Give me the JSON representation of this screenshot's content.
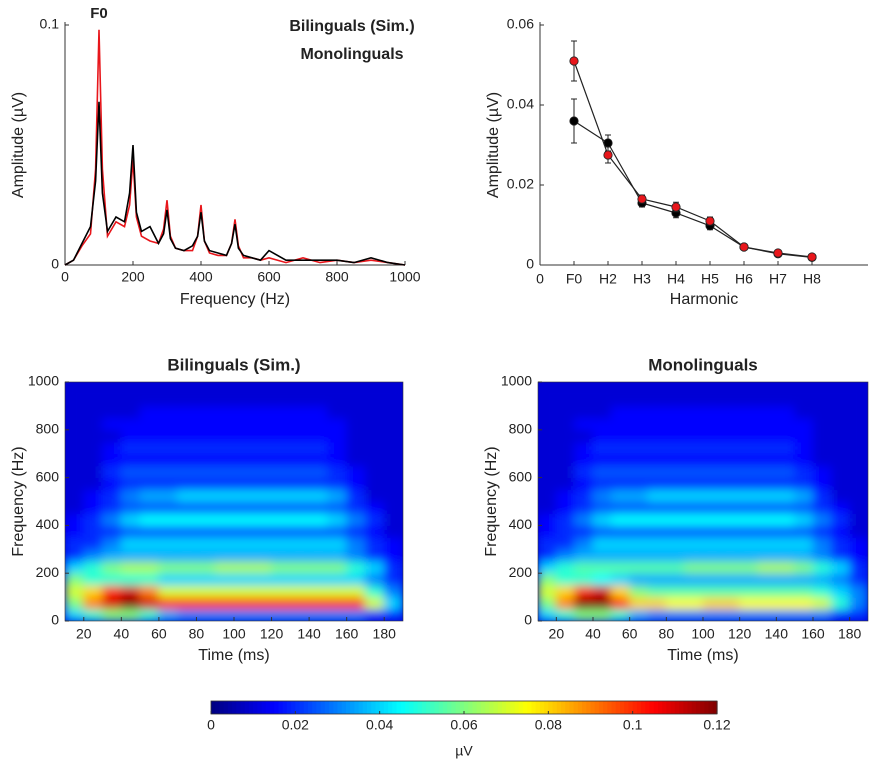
{
  "chart_data": [
    {
      "type": "line",
      "annotation": "F0",
      "xlabel": "Frequency (Hz)",
      "ylabel": "Amplitude (µV)",
      "xlim": [
        0,
        1000
      ],
      "ylim": [
        0,
        0.1
      ],
      "xticks": [
        0,
        200,
        400,
        600,
        800,
        1000
      ],
      "yticks": [
        0,
        0.1
      ],
      "x": [
        0,
        25,
        50,
        75,
        90,
        100,
        110,
        125,
        150,
        175,
        190,
        200,
        210,
        225,
        250,
        275,
        290,
        300,
        310,
        325,
        350,
        375,
        390,
        400,
        410,
        425,
        450,
        475,
        490,
        500,
        510,
        525,
        550,
        575,
        600,
        650,
        700,
        750,
        800,
        850,
        900,
        950,
        1000
      ],
      "series": [
        {
          "name": "Bilinguals (Sim.)",
          "color": "#e8161b",
          "values": [
            0,
            0.002,
            0.008,
            0.013,
            0.04,
            0.098,
            0.04,
            0.012,
            0.018,
            0.016,
            0.025,
            0.044,
            0.02,
            0.012,
            0.01,
            0.009,
            0.015,
            0.027,
            0.012,
            0.007,
            0.006,
            0.006,
            0.012,
            0.025,
            0.01,
            0.005,
            0.004,
            0.004,
            0.009,
            0.019,
            0.008,
            0.003,
            0.003,
            0.002,
            0.003,
            0.001,
            0.003,
            0.001,
            0.002,
            0.001,
            0.002,
            0.001,
            0
          ]
        },
        {
          "name": "Monolinguals",
          "color": "#000000",
          "values": [
            0,
            0.002,
            0.009,
            0.016,
            0.035,
            0.068,
            0.03,
            0.014,
            0.02,
            0.018,
            0.03,
            0.05,
            0.022,
            0.014,
            0.016,
            0.009,
            0.013,
            0.023,
            0.011,
            0.007,
            0.006,
            0.008,
            0.012,
            0.022,
            0.01,
            0.006,
            0.005,
            0.004,
            0.009,
            0.017,
            0.007,
            0.004,
            0.003,
            0.002,
            0.006,
            0.002,
            0.002,
            0.002,
            0.002,
            0.001,
            0.003,
            0.001,
            0
          ]
        }
      ]
    },
    {
      "type": "errorline",
      "xlabel": "Harmonic",
      "ylabel": "Amplitude (µV)",
      "categories": [
        "0",
        "F0",
        "H2",
        "H3",
        "H4",
        "H5",
        "H6",
        "H7",
        "H8"
      ],
      "ylim": [
        0,
        0.06
      ],
      "yticks": [
        0,
        0.02,
        0.04,
        0.06
      ],
      "series": [
        {
          "name": "Monolinguals",
          "color": "#000000",
          "values": [
            null,
            0.036,
            0.0305,
            0.0155,
            0.013,
            0.0098,
            0.0045,
            0.0028,
            0.0019
          ],
          "errors": [
            null,
            0.0055,
            0.002,
            0.001,
            0.0012,
            0.001,
            0.0005,
            0.0004,
            0.0003
          ]
        },
        {
          "name": "Bilinguals (Sim.)",
          "color": "#e8161b",
          "values": [
            null,
            0.051,
            0.0275,
            0.0165,
            0.0145,
            0.011,
            0.0045,
            0.003,
            0.002
          ],
          "errors": [
            null,
            0.005,
            0.002,
            0.001,
            0.0012,
            0.001,
            0.0005,
            0.0004,
            0.0003
          ]
        }
      ]
    },
    {
      "type": "heatmap",
      "title": "Bilinguals (Sim.)",
      "title_color": "#e8161b",
      "xlabel": "Time (ms)",
      "ylabel": "Frequency (Hz)",
      "xlim": [
        10,
        190
      ],
      "ylim": [
        0,
        1000
      ],
      "xticks": [
        20,
        40,
        60,
        80,
        100,
        120,
        140,
        160,
        180
      ],
      "yticks": [
        0,
        200,
        400,
        600,
        800,
        1000
      ],
      "x": [
        15,
        25,
        35,
        45,
        55,
        65,
        75,
        85,
        95,
        105,
        115,
        125,
        135,
        145,
        155,
        165,
        175,
        185
      ],
      "y": [
        25,
        75,
        125,
        175,
        225,
        275,
        325,
        375,
        425,
        475,
        525,
        575,
        625,
        675,
        725,
        775,
        825,
        875,
        925,
        975
      ],
      "z": [
        [
          0.04,
          0.05,
          0.06,
          0.06,
          0.05,
          0.035,
          0.03,
          0.03,
          0.03,
          0.03,
          0.03,
          0.03,
          0.03,
          0.03,
          0.03,
          0.03,
          0.02,
          0.02
        ],
        [
          0.06,
          0.09,
          0.11,
          0.12,
          0.11,
          0.1,
          0.1,
          0.1,
          0.1,
          0.1,
          0.1,
          0.1,
          0.1,
          0.1,
          0.1,
          0.1,
          0.07,
          0.04
        ],
        [
          0.07,
          0.08,
          0.1,
          0.11,
          0.09,
          0.07,
          0.07,
          0.07,
          0.07,
          0.07,
          0.07,
          0.07,
          0.07,
          0.07,
          0.07,
          0.07,
          0.05,
          0.03
        ],
        [
          0.06,
          0.05,
          0.05,
          0.05,
          0.05,
          0.04,
          0.04,
          0.04,
          0.04,
          0.04,
          0.04,
          0.04,
          0.04,
          0.04,
          0.04,
          0.04,
          0.03,
          0.02
        ],
        [
          0.04,
          0.05,
          0.06,
          0.065,
          0.065,
          0.06,
          0.06,
          0.06,
          0.065,
          0.065,
          0.065,
          0.06,
          0.06,
          0.06,
          0.06,
          0.05,
          0.04,
          0.02
        ],
        [
          0.02,
          0.03,
          0.035,
          0.035,
          0.035,
          0.035,
          0.035,
          0.035,
          0.035,
          0.035,
          0.035,
          0.035,
          0.035,
          0.035,
          0.035,
          0.03,
          0.02,
          0.015
        ],
        [
          0.02,
          0.02,
          0.03,
          0.04,
          0.04,
          0.04,
          0.04,
          0.04,
          0.04,
          0.04,
          0.04,
          0.04,
          0.04,
          0.04,
          0.04,
          0.03,
          0.02,
          0.015
        ],
        [
          0.015,
          0.02,
          0.02,
          0.025,
          0.025,
          0.025,
          0.025,
          0.025,
          0.025,
          0.025,
          0.025,
          0.025,
          0.025,
          0.025,
          0.025,
          0.02,
          0.015,
          0.01
        ],
        [
          0.015,
          0.02,
          0.03,
          0.04,
          0.045,
          0.045,
          0.045,
          0.045,
          0.045,
          0.045,
          0.045,
          0.045,
          0.045,
          0.045,
          0.04,
          0.03,
          0.02,
          0.01
        ],
        [
          0.01,
          0.015,
          0.02,
          0.025,
          0.025,
          0.025,
          0.025,
          0.025,
          0.025,
          0.025,
          0.025,
          0.025,
          0.025,
          0.025,
          0.025,
          0.02,
          0.015,
          0.01
        ],
        [
          0.01,
          0.015,
          0.02,
          0.03,
          0.035,
          0.035,
          0.04,
          0.04,
          0.04,
          0.04,
          0.04,
          0.04,
          0.04,
          0.04,
          0.035,
          0.02,
          0.01,
          0.01
        ],
        [
          0.01,
          0.01,
          0.015,
          0.02,
          0.02,
          0.02,
          0.02,
          0.02,
          0.02,
          0.02,
          0.02,
          0.02,
          0.02,
          0.02,
          0.02,
          0.015,
          0.01,
          0.01
        ],
        [
          0.01,
          0.01,
          0.02,
          0.025,
          0.025,
          0.025,
          0.025,
          0.025,
          0.025,
          0.025,
          0.025,
          0.025,
          0.025,
          0.025,
          0.02,
          0.015,
          0.01,
          0.01
        ],
        [
          0.01,
          0.01,
          0.015,
          0.015,
          0.015,
          0.015,
          0.015,
          0.015,
          0.015,
          0.015,
          0.015,
          0.015,
          0.015,
          0.015,
          0.015,
          0.01,
          0.01,
          0.01
        ],
        [
          0.01,
          0.01,
          0.015,
          0.02,
          0.02,
          0.02,
          0.02,
          0.02,
          0.02,
          0.02,
          0.02,
          0.02,
          0.02,
          0.02,
          0.015,
          0.01,
          0.01,
          0.01
        ],
        [
          0.01,
          0.01,
          0.01,
          0.015,
          0.015,
          0.015,
          0.015,
          0.015,
          0.015,
          0.015,
          0.015,
          0.015,
          0.015,
          0.015,
          0.015,
          0.01,
          0.01,
          0.01
        ],
        [
          0.01,
          0.01,
          0.015,
          0.015,
          0.015,
          0.015,
          0.015,
          0.015,
          0.015,
          0.015,
          0.015,
          0.015,
          0.015,
          0.015,
          0.015,
          0.01,
          0.01,
          0.01
        ],
        [
          0.01,
          0.01,
          0.01,
          0.01,
          0.015,
          0.015,
          0.015,
          0.015,
          0.015,
          0.015,
          0.015,
          0.015,
          0.015,
          0.015,
          0.01,
          0.01,
          0.01,
          0.01
        ],
        [
          0.01,
          0.01,
          0.01,
          0.01,
          0.01,
          0.01,
          0.01,
          0.01,
          0.01,
          0.01,
          0.01,
          0.01,
          0.01,
          0.01,
          0.01,
          0.01,
          0.01,
          0.01
        ],
        [
          0.01,
          0.01,
          0.01,
          0.01,
          0.01,
          0.01,
          0.01,
          0.01,
          0.01,
          0.01,
          0.01,
          0.01,
          0.01,
          0.01,
          0.01,
          0.01,
          0.01,
          0.01
        ]
      ]
    },
    {
      "type": "heatmap",
      "title": "Monolinguals",
      "title_color": "#000000",
      "xlabel": "Time (ms)",
      "ylabel": "Frequency (Hz)",
      "xlim": [
        10,
        190
      ],
      "ylim": [
        0,
        1000
      ],
      "xticks": [
        20,
        40,
        60,
        80,
        100,
        120,
        140,
        160,
        180
      ],
      "yticks": [
        0,
        200,
        400,
        600,
        800,
        1000
      ],
      "x": [
        15,
        25,
        35,
        45,
        55,
        65,
        75,
        85,
        95,
        105,
        115,
        125,
        135,
        145,
        155,
        165,
        175,
        185
      ],
      "y": [
        25,
        75,
        125,
        175,
        225,
        275,
        325,
        375,
        425,
        475,
        525,
        575,
        625,
        675,
        725,
        775,
        825,
        875,
        925,
        975
      ],
      "z": [
        [
          0.04,
          0.05,
          0.06,
          0.06,
          0.05,
          0.035,
          0.03,
          0.03,
          0.03,
          0.03,
          0.03,
          0.03,
          0.03,
          0.03,
          0.03,
          0.03,
          0.02,
          0.02
        ],
        [
          0.06,
          0.09,
          0.12,
          0.12,
          0.1,
          0.08,
          0.08,
          0.075,
          0.075,
          0.08,
          0.08,
          0.075,
          0.075,
          0.075,
          0.075,
          0.07,
          0.05,
          0.03
        ],
        [
          0.07,
          0.08,
          0.1,
          0.11,
          0.08,
          0.06,
          0.055,
          0.055,
          0.055,
          0.055,
          0.055,
          0.055,
          0.055,
          0.055,
          0.055,
          0.05,
          0.04,
          0.03
        ],
        [
          0.06,
          0.05,
          0.05,
          0.045,
          0.04,
          0.035,
          0.035,
          0.035,
          0.035,
          0.035,
          0.035,
          0.035,
          0.035,
          0.035,
          0.035,
          0.035,
          0.03,
          0.02
        ],
        [
          0.04,
          0.05,
          0.055,
          0.055,
          0.055,
          0.055,
          0.055,
          0.055,
          0.06,
          0.06,
          0.06,
          0.06,
          0.065,
          0.065,
          0.06,
          0.05,
          0.04,
          0.02
        ],
        [
          0.02,
          0.03,
          0.035,
          0.035,
          0.035,
          0.035,
          0.035,
          0.035,
          0.035,
          0.035,
          0.035,
          0.035,
          0.035,
          0.035,
          0.035,
          0.03,
          0.02,
          0.015
        ],
        [
          0.02,
          0.02,
          0.03,
          0.04,
          0.04,
          0.04,
          0.04,
          0.04,
          0.04,
          0.04,
          0.04,
          0.04,
          0.04,
          0.04,
          0.04,
          0.03,
          0.02,
          0.015
        ],
        [
          0.015,
          0.02,
          0.02,
          0.025,
          0.025,
          0.025,
          0.025,
          0.025,
          0.025,
          0.025,
          0.025,
          0.025,
          0.025,
          0.025,
          0.025,
          0.02,
          0.015,
          0.01
        ],
        [
          0.015,
          0.02,
          0.03,
          0.04,
          0.045,
          0.045,
          0.045,
          0.045,
          0.045,
          0.045,
          0.045,
          0.045,
          0.045,
          0.045,
          0.04,
          0.03,
          0.02,
          0.01
        ],
        [
          0.01,
          0.015,
          0.02,
          0.025,
          0.025,
          0.025,
          0.025,
          0.025,
          0.025,
          0.025,
          0.025,
          0.025,
          0.025,
          0.025,
          0.025,
          0.02,
          0.015,
          0.01
        ],
        [
          0.01,
          0.015,
          0.02,
          0.03,
          0.035,
          0.035,
          0.04,
          0.04,
          0.04,
          0.04,
          0.04,
          0.04,
          0.04,
          0.04,
          0.035,
          0.02,
          0.01,
          0.01
        ],
        [
          0.01,
          0.01,
          0.015,
          0.02,
          0.02,
          0.02,
          0.02,
          0.02,
          0.02,
          0.02,
          0.02,
          0.02,
          0.02,
          0.02,
          0.02,
          0.015,
          0.01,
          0.01
        ],
        [
          0.01,
          0.01,
          0.02,
          0.025,
          0.025,
          0.025,
          0.025,
          0.025,
          0.025,
          0.025,
          0.025,
          0.025,
          0.025,
          0.025,
          0.02,
          0.015,
          0.01,
          0.01
        ],
        [
          0.01,
          0.01,
          0.015,
          0.015,
          0.015,
          0.015,
          0.015,
          0.015,
          0.015,
          0.015,
          0.015,
          0.015,
          0.015,
          0.015,
          0.015,
          0.01,
          0.01,
          0.01
        ],
        [
          0.01,
          0.01,
          0.015,
          0.02,
          0.02,
          0.02,
          0.02,
          0.02,
          0.02,
          0.02,
          0.02,
          0.02,
          0.02,
          0.02,
          0.015,
          0.01,
          0.01,
          0.01
        ],
        [
          0.01,
          0.01,
          0.01,
          0.015,
          0.015,
          0.015,
          0.015,
          0.015,
          0.015,
          0.015,
          0.015,
          0.015,
          0.015,
          0.015,
          0.015,
          0.01,
          0.01,
          0.01
        ],
        [
          0.01,
          0.01,
          0.015,
          0.015,
          0.015,
          0.015,
          0.015,
          0.015,
          0.015,
          0.015,
          0.015,
          0.015,
          0.015,
          0.015,
          0.015,
          0.01,
          0.01,
          0.01
        ],
        [
          0.01,
          0.01,
          0.01,
          0.01,
          0.015,
          0.015,
          0.015,
          0.015,
          0.015,
          0.015,
          0.015,
          0.015,
          0.015,
          0.015,
          0.01,
          0.01,
          0.01,
          0.01
        ],
        [
          0.01,
          0.01,
          0.01,
          0.01,
          0.01,
          0.01,
          0.01,
          0.01,
          0.01,
          0.01,
          0.01,
          0.01,
          0.01,
          0.01,
          0.01,
          0.01,
          0.01,
          0.01
        ],
        [
          0.01,
          0.01,
          0.01,
          0.01,
          0.01,
          0.01,
          0.01,
          0.01,
          0.01,
          0.01,
          0.01,
          0.01,
          0.01,
          0.01,
          0.01,
          0.01,
          0.01,
          0.01
        ]
      ]
    },
    {
      "type": "colorbar",
      "colormap": "jet",
      "label": "µV",
      "zlim": [
        0,
        0.12
      ],
      "ticks": [
        0,
        0.02,
        0.04,
        0.06,
        0.08,
        0.1,
        0.12
      ]
    }
  ]
}
